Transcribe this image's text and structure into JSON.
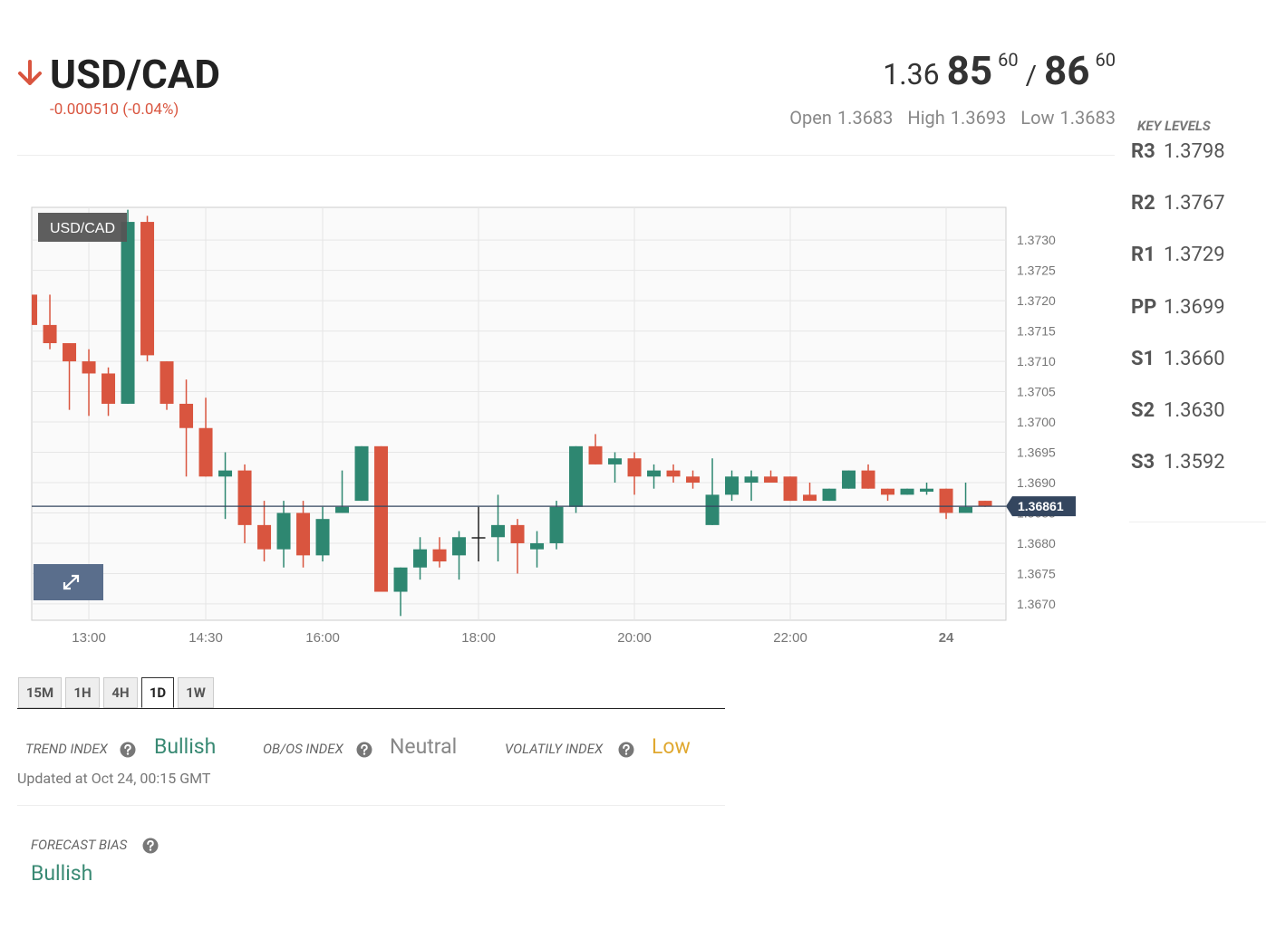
{
  "header": {
    "pair": "USD/CAD",
    "change": "-0.000510 (-0.04%)",
    "bid": {
      "big": "1.36",
      "pips": "85",
      "fraction": "60"
    },
    "separator": "/",
    "ask": {
      "pips": "86",
      "fraction": "60"
    },
    "stats": [
      {
        "label": "Open",
        "value": "1.3683"
      },
      {
        "label": "High",
        "value": "1.3693"
      },
      {
        "label": "Low",
        "value": "1.3683"
      }
    ]
  },
  "key_levels": {
    "title": "KEY LEVELS",
    "levels": [
      {
        "label": "R3",
        "value": "1.3798"
      },
      {
        "label": "R2",
        "value": "1.3767"
      },
      {
        "label": "R1",
        "value": "1.3729"
      },
      {
        "label": "PP",
        "value": "1.3699"
      },
      {
        "label": "S1",
        "value": "1.3660"
      },
      {
        "label": "S2",
        "value": "1.3630"
      },
      {
        "label": "S3",
        "value": "1.3592"
      }
    ]
  },
  "chart_data": {
    "type": "candlestick",
    "title": "USD/CAD",
    "x": [
      12.25,
      12.5,
      12.75,
      13,
      13.25,
      13.5,
      13.75,
      14,
      14.25,
      14.5,
      14.75,
      15,
      15.25,
      15.5,
      15.75,
      16,
      16.25,
      16.5,
      16.75,
      17,
      17.25,
      17.5,
      17.75,
      18,
      18.25,
      18.5,
      18.75,
      19,
      19.25,
      19.5,
      19.75,
      20,
      20.25,
      20.5,
      20.75,
      21,
      21.25,
      21.5,
      21.75,
      22,
      22.25,
      22.5,
      22.75,
      23,
      23.25,
      23.5,
      23.75,
      24,
      24.25,
      24.5
    ],
    "open": [
      1.3721,
      1.3716,
      1.3713,
      1.371,
      1.3708,
      1.3703,
      1.3733,
      1.371,
      1.3703,
      1.3699,
      1.3691,
      1.3692,
      1.3683,
      1.3679,
      1.3685,
      1.3678,
      1.3685,
      1.3687,
      1.3696,
      1.3672,
      1.3676,
      1.3679,
      1.3678,
      1.3681,
      1.3681,
      1.3683,
      1.3679,
      1.368,
      1.3686,
      1.3696,
      1.3693,
      1.3694,
      1.3691,
      1.3692,
      1.3691,
      1.3683,
      1.3688,
      1.369,
      1.3691,
      1.3691,
      1.3688,
      1.3687,
      1.3689,
      1.3692,
      1.3689,
      1.3688,
      1.36885,
      1.3689,
      1.3685,
      1.3687
    ],
    "high": [
      1.3722,
      1.3721,
      1.3713,
      1.3712,
      1.3709,
      1.3735,
      1.3734,
      1.371,
      1.3707,
      1.3704,
      1.3695,
      1.3693,
      1.3687,
      1.3687,
      1.3687,
      1.3686,
      1.3692,
      1.3696,
      1.3696,
      1.3676,
      1.3681,
      1.3681,
      1.3682,
      1.3686,
      1.3688,
      1.3684,
      1.3682,
      1.3687,
      1.3696,
      1.3698,
      1.3695,
      1.3695,
      1.3693,
      1.3693,
      1.3692,
      1.3694,
      1.3692,
      1.3692,
      1.3692,
      1.3691,
      1.369,
      1.3689,
      1.3692,
      1.3693,
      1.3689,
      1.3689,
      1.369,
      1.3689,
      1.369,
      1.3687
    ],
    "low": [
      1.371,
      1.3712,
      1.3702,
      1.3701,
      1.3701,
      1.3703,
      1.371,
      1.3702,
      1.3691,
      1.3691,
      1.3684,
      1.368,
      1.3677,
      1.3676,
      1.3676,
      1.3677,
      1.3685,
      1.3687,
      1.3672,
      1.3668,
      1.3674,
      1.3676,
      1.3674,
      1.3677,
      1.3677,
      1.3675,
      1.3676,
      1.3679,
      1.3685,
      1.3693,
      1.369,
      1.3688,
      1.3689,
      1.369,
      1.3689,
      1.3683,
      1.3687,
      1.3687,
      1.369,
      1.3687,
      1.3687,
      1.3687,
      1.3689,
      1.3689,
      1.3687,
      1.3688,
      1.3688,
      1.3684,
      1.3685,
      1.3686
    ],
    "close": [
      1.3716,
      1.3713,
      1.371,
      1.3708,
      1.3703,
      1.3733,
      1.3711,
      1.3703,
      1.3699,
      1.3691,
      1.3692,
      1.3683,
      1.3679,
      1.3685,
      1.3678,
      1.3684,
      1.3686,
      1.3696,
      1.3672,
      1.3676,
      1.3679,
      1.3677,
      1.3681,
      1.3681,
      1.3683,
      1.368,
      1.368,
      1.3686,
      1.3696,
      1.3693,
      1.3694,
      1.3691,
      1.3692,
      1.3691,
      1.369,
      1.3688,
      1.3691,
      1.3691,
      1.369,
      1.3687,
      1.3687,
      1.3689,
      1.3692,
      1.3689,
      1.3688,
      1.3689,
      1.3689,
      1.3685,
      1.3686,
      1.36861
    ],
    "up_color": "#2e8771",
    "down_color": "#d9553f",
    "flat_color": "#222222",
    "last": 1.36861,
    "last_color": "#34465f",
    "xlim": [
      12.267,
      24.767
    ],
    "ylim": [
      1.36673,
      1.37354
    ],
    "xticks": [
      {
        "value": 13,
        "label": "13:00"
      },
      {
        "value": 14.5,
        "label": "14:30"
      },
      {
        "value": 16,
        "label": "16:00"
      },
      {
        "value": 18,
        "label": "18:00"
      },
      {
        "value": 20,
        "label": "20:00"
      },
      {
        "value": 22,
        "label": "22:00"
      },
      24
    ],
    "yticks": [
      {
        "value": 1.367,
        "label": "1.3670"
      },
      {
        "value": 1.3675,
        "label": "1.3675"
      },
      {
        "value": 1.368,
        "label": "1.3680"
      },
      {
        "value": 1.3685,
        "label": "1.3685"
      },
      {
        "value": 1.369,
        "label": "1.3690"
      },
      {
        "value": 1.3695,
        "label": "1.3695"
      },
      {
        "value": 1.37,
        "label": "1.3700"
      },
      {
        "value": 1.3705,
        "label": "1.3705"
      },
      {
        "value": 1.371,
        "label": "1.3710"
      },
      {
        "value": 1.3715,
        "label": "1.3715"
      },
      {
        "value": 1.372,
        "label": "1.3720"
      },
      {
        "value": 1.3725,
        "label": "1.3725"
      },
      {
        "value": 1.373,
        "label": "1.3730"
      }
    ],
    "grid": true
  },
  "tabs": {
    "items": [
      "15M",
      "1H",
      "4H",
      "1D",
      "1W"
    ],
    "active": "1D"
  },
  "indices": [
    {
      "label": "TREND INDEX",
      "value": "Bullish",
      "color": "#3a8a74"
    },
    {
      "label": "OB/OS INDEX",
      "value": "Neutral",
      "color": "#888888"
    },
    {
      "label": "VOLATILY INDEX",
      "value": "Low",
      "color": "#e0a830"
    }
  ],
  "updated": "Updated at Oct 24, 00:15 GMT",
  "forecast": {
    "label": "FORECAST BIAS",
    "value": "Bullish",
    "color": "#3a8a74"
  }
}
